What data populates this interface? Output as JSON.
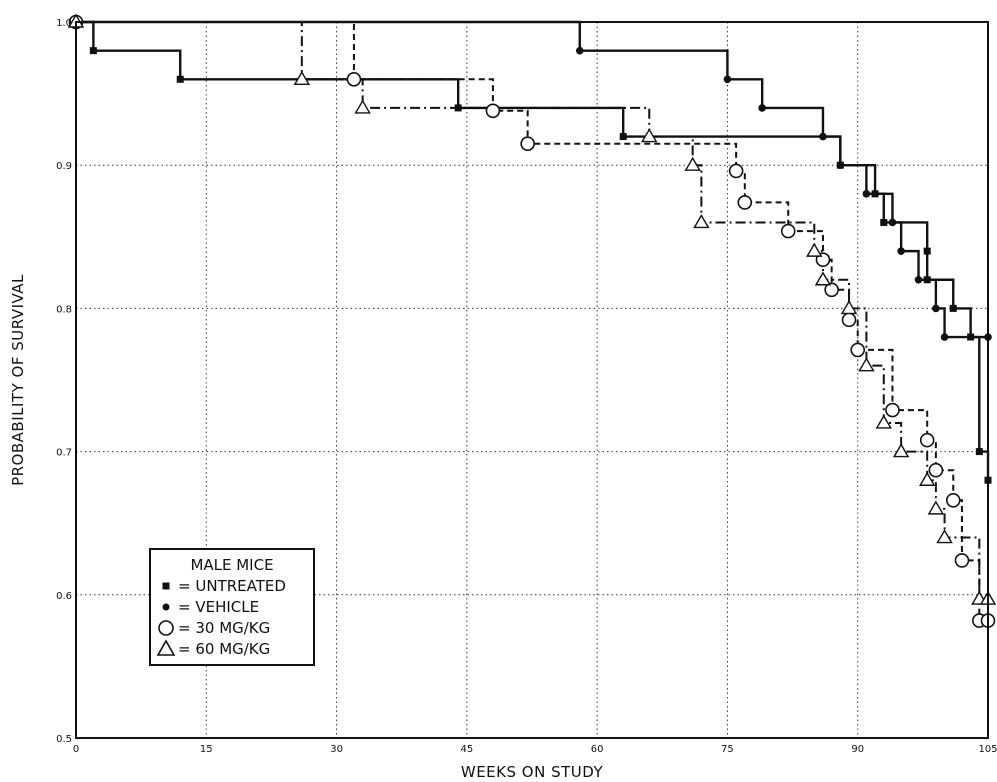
{
  "chart_data": {
    "type": "line",
    "subtype": "step",
    "xlabel": "WEEKS ON STUDY",
    "ylabel": "PROBABILITY OF SURVIVAL",
    "xlim": [
      0,
      105
    ],
    "ylim": [
      0.5,
      1.0
    ],
    "xticks": [
      0,
      15,
      30,
      45,
      60,
      75,
      90,
      105
    ],
    "yticks": [
      0.5,
      0.6,
      0.7,
      0.8,
      0.9,
      1.0
    ],
    "xtick_labels": [
      "0",
      "15",
      "30",
      "45",
      "60",
      "75",
      "90",
      "105"
    ],
    "ytick_labels": [
      "0.5",
      "0.6",
      "0.7",
      "0.8",
      "0.9",
      "1.0"
    ],
    "grid": true,
    "legend": {
      "position": "bottom-left",
      "title": "MALE MICE",
      "entries": [
        "= UNTREATED",
        "= VEHICLE",
        "= 30 MG/KG",
        "= 60 MG/KG"
      ]
    },
    "series": [
      {
        "name": "UNTREATED",
        "marker": "filled-square",
        "line_style": "solid",
        "points": [
          [
            0,
            1.0
          ],
          [
            2,
            0.98
          ],
          [
            12,
            0.96
          ],
          [
            44,
            0.94
          ],
          [
            63,
            0.92
          ],
          [
            88,
            0.9
          ],
          [
            92,
            0.88
          ],
          [
            93,
            0.86
          ],
          [
            98,
            0.84
          ],
          [
            98,
            0.82
          ],
          [
            101,
            0.8
          ],
          [
            103,
            0.78
          ],
          [
            104,
            0.7
          ],
          [
            105,
            0.68
          ]
        ]
      },
      {
        "name": "VEHICLE",
        "marker": "filled-circle",
        "line_style": "solid",
        "points": [
          [
            0,
            1.0
          ],
          [
            58,
            0.98
          ],
          [
            75,
            0.96
          ],
          [
            79,
            0.94
          ],
          [
            86,
            0.92
          ],
          [
            88,
            0.9
          ],
          [
            91,
            0.88
          ],
          [
            94,
            0.86
          ],
          [
            95,
            0.84
          ],
          [
            97,
            0.82
          ],
          [
            99,
            0.8
          ],
          [
            100,
            0.78
          ],
          [
            105,
            0.78
          ]
        ]
      },
      {
        "name": "30 MG/KG",
        "marker": "open-circle",
        "line_style": "dashed",
        "points": [
          [
            0,
            1.0
          ],
          [
            32,
            0.96
          ],
          [
            48,
            0.938
          ],
          [
            52,
            0.915
          ],
          [
            76,
            0.896
          ],
          [
            77,
            0.874
          ],
          [
            82,
            0.854
          ],
          [
            86,
            0.834
          ],
          [
            87,
            0.813
          ],
          [
            89,
            0.792
          ],
          [
            90,
            0.771
          ],
          [
            94,
            0.729
          ],
          [
            98,
            0.708
          ],
          [
            99,
            0.687
          ],
          [
            101,
            0.666
          ],
          [
            102,
            0.624
          ],
          [
            104,
            0.582
          ],
          [
            105,
            0.582
          ]
        ]
      },
      {
        "name": "60 MG/KG",
        "marker": "open-triangle",
        "line_style": "dash-dot",
        "points": [
          [
            0,
            1.0
          ],
          [
            26,
            0.96
          ],
          [
            33,
            0.94
          ],
          [
            66,
            0.92
          ],
          [
            71,
            0.9
          ],
          [
            72,
            0.86
          ],
          [
            85,
            0.84
          ],
          [
            86,
            0.82
          ],
          [
            89,
            0.8
          ],
          [
            91,
            0.76
          ],
          [
            93,
            0.72
          ],
          [
            95,
            0.7
          ],
          [
            98,
            0.68
          ],
          [
            99,
            0.66
          ],
          [
            100,
            0.64
          ],
          [
            104,
            0.597
          ],
          [
            105,
            0.597
          ]
        ]
      }
    ]
  }
}
